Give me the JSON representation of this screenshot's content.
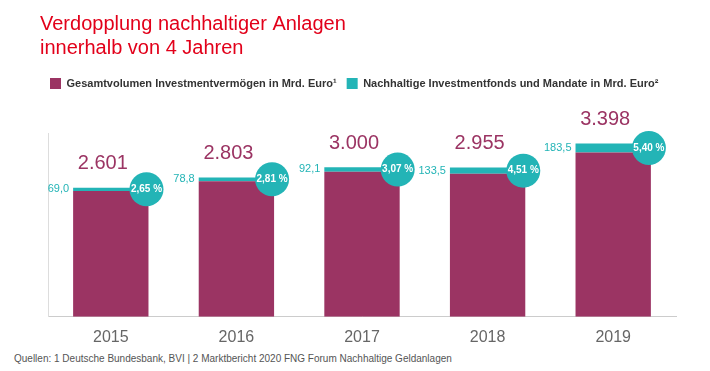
{
  "chart_data": {
    "type": "bar",
    "title": [
      "Verdopplung nachhaltiger Anlagen",
      "innerhalb von 4 Jahren"
    ],
    "categories": [
      "2015",
      "2016",
      "2017",
      "2018",
      "2019"
    ],
    "series": [
      {
        "name": "Gesamtvolumen Investmentvermögen in Mrd. Euro¹",
        "color": "#9b3463",
        "values": [
          2601,
          2803,
          3000,
          2955,
          3398
        ],
        "value_labels": [
          "2.601",
          "2.803",
          "3.000",
          "2.955",
          "3.398"
        ]
      },
      {
        "name": "Nachhaltige Investmentfonds und Mandate in Mrd. Euro²",
        "color": "#23b4b6",
        "values": [
          69.0,
          78.8,
          92.1,
          133.5,
          183.5
        ],
        "value_labels": [
          "69,0",
          "78,8",
          "92,1",
          "133,5",
          "183,5"
        ]
      }
    ],
    "shares": {
      "values": [
        2.65,
        2.81,
        3.07,
        4.51,
        5.4
      ],
      "value_labels": [
        "2,65 %",
        "2,81 %",
        "3,07 %",
        "4,51 %",
        "5,40 %"
      ]
    },
    "stacked": true,
    "data_labels": true,
    "legend": "top-left",
    "tick_labels": "x",
    "grid": false,
    "ylim": [
      0,
      3800
    ],
    "source": "Quellen: 1 Deutsche Bundesbank, BVI | 2 Marktbericht 2020 FNG Forum Nachhaltige Geldanlagen"
  }
}
